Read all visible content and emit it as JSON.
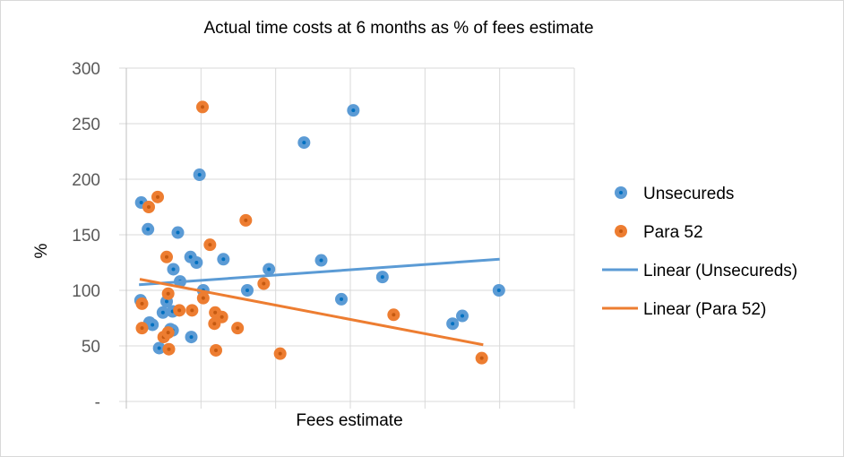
{
  "chart_data": {
    "type": "scatter",
    "title": "Actual time costs at 6 months as % of fees estimate",
    "xlabel": "Fees estimate",
    "ylabel": "%",
    "xlim": [
      0,
      6
    ],
    "ylim": [
      0,
      300
    ],
    "y_ticks": [
      "-",
      "50",
      "100",
      "150",
      "200",
      "250",
      "300"
    ],
    "x_tick_labels_shown": false,
    "grid": true,
    "legend": "right",
    "series": [
      {
        "name": "Unsecureds",
        "color": "#5b9bd5",
        "points": [
          [
            0.19,
            91
          ],
          [
            0.2,
            179
          ],
          [
            0.29,
            155
          ],
          [
            0.31,
            71
          ],
          [
            0.35,
            69
          ],
          [
            0.44,
            48
          ],
          [
            0.49,
            80
          ],
          [
            0.62,
            81
          ],
          [
            0.54,
            90
          ],
          [
            0.59,
            65
          ],
          [
            0.62,
            64
          ],
          [
            0.63,
            119
          ],
          [
            0.69,
            152
          ],
          [
            0.72,
            108
          ],
          [
            0.86,
            130
          ],
          [
            0.94,
            125
          ],
          [
            0.98,
            204
          ],
          [
            1.03,
            100
          ],
          [
            0.87,
            58
          ],
          [
            1.3,
            128
          ],
          [
            1.62,
            100
          ],
          [
            1.91,
            119
          ],
          [
            2.38,
            233
          ],
          [
            2.61,
            127
          ],
          [
            2.88,
            92
          ],
          [
            3.04,
            262
          ],
          [
            3.43,
            112
          ],
          [
            4.37,
            70
          ],
          [
            4.5,
            77
          ],
          [
            4.99,
            100
          ]
        ]
      },
      {
        "name": "Para 52",
        "color": "#ed7d31",
        "points": [
          [
            0.21,
            88
          ],
          [
            0.21,
            66
          ],
          [
            0.3,
            175
          ],
          [
            0.42,
            184
          ],
          [
            0.54,
            130
          ],
          [
            0.56,
            97
          ],
          [
            0.71,
            82
          ],
          [
            0.88,
            82
          ],
          [
            0.5,
            58
          ],
          [
            0.56,
            62
          ],
          [
            0.57,
            47
          ],
          [
            1.02,
            265
          ],
          [
            1.12,
            141
          ],
          [
            1.03,
            93
          ],
          [
            1.6,
            163
          ],
          [
            1.19,
            80
          ],
          [
            1.28,
            76
          ],
          [
            1.18,
            70
          ],
          [
            1.49,
            66
          ],
          [
            1.2,
            46
          ],
          [
            1.84,
            106
          ],
          [
            2.06,
            43
          ],
          [
            3.58,
            78
          ],
          [
            4.76,
            39
          ]
        ]
      }
    ],
    "trendlines": [
      {
        "name": "Linear (Unsecureds)",
        "color": "#5b9bd5",
        "x": [
          0.17,
          5.0
        ],
        "y": [
          105,
          128
        ]
      },
      {
        "name": "Linear (Para 52)",
        "color": "#ed7d31",
        "x": [
          0.18,
          4.78
        ],
        "y": [
          110,
          51
        ]
      }
    ]
  }
}
